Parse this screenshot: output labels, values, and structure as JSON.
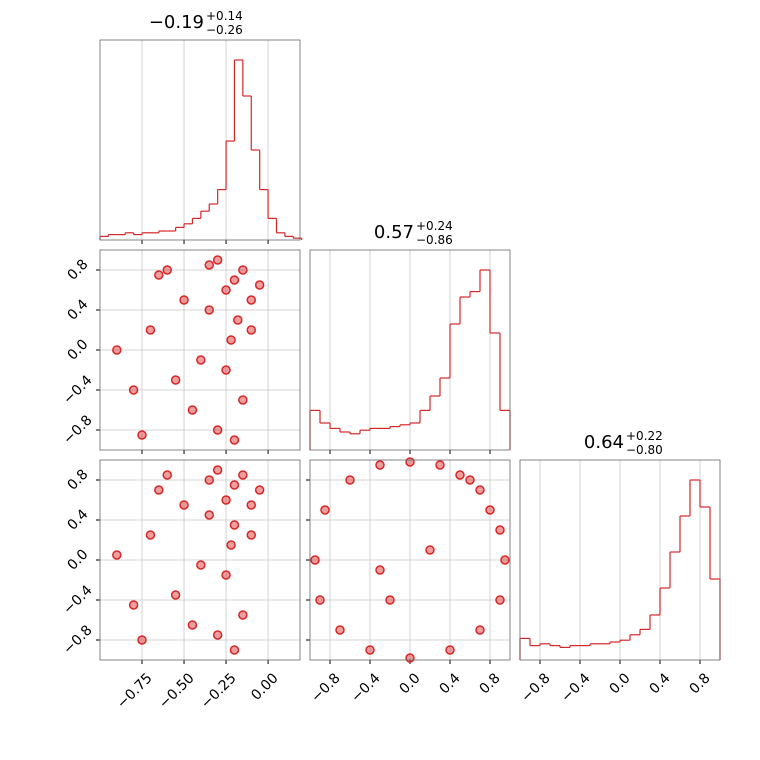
{
  "chart_data": [
    {
      "type": "histogram",
      "title": "−0.19",
      "title_plus": "+0.14",
      "title_minus": "−0.26",
      "color": "#d62728",
      "bins": [
        -1.0,
        -0.95,
        -0.9,
        -0.85,
        -0.8,
        -0.75,
        -0.7,
        -0.65,
        -0.6,
        -0.55,
        -0.5,
        -0.45,
        -0.4,
        -0.35,
        -0.3,
        -0.25,
        -0.2,
        -0.15,
        -0.1,
        -0.05,
        0.0,
        0.05,
        0.1,
        0.15,
        0.2
      ],
      "values": [
        2,
        3,
        3,
        4,
        3,
        4,
        4,
        5,
        5,
        7,
        9,
        12,
        16,
        20,
        28,
        55,
        100,
        80,
        50,
        28,
        12,
        4,
        2,
        1
      ],
      "xlim": [
        -1.0,
        0.19
      ],
      "xticks": [
        -0.75,
        -0.5,
        -0.25,
        0.0
      ],
      "grid": true,
      "show_xticklabels": false
    },
    {
      "type": "scatter",
      "color": "#d62728",
      "x": [
        -0.2,
        -0.15,
        -0.25,
        -0.1,
        -0.3,
        -0.18,
        -0.22,
        -0.05,
        -0.35,
        -0.4,
        -0.5,
        -0.6,
        -0.7,
        -0.8,
        -0.9,
        -0.45,
        -0.3,
        -0.2,
        -0.15,
        -0.55,
        -0.65,
        -0.25,
        -0.1,
        -0.35,
        -0.75
      ],
      "y": [
        0.7,
        0.8,
        0.6,
        0.5,
        0.9,
        0.3,
        0.1,
        0.65,
        0.4,
        -0.1,
        0.5,
        0.8,
        0.2,
        -0.4,
        0.0,
        -0.6,
        -0.8,
        -0.9,
        -0.5,
        -0.3,
        0.75,
        -0.2,
        0.2,
        0.85,
        -0.85
      ],
      "xlim": [
        -1.0,
        0.19
      ],
      "xticks": [
        -0.75,
        -0.5,
        -0.25,
        0.0
      ],
      "ylim": [
        -1,
        1
      ],
      "yticks": [
        {
          "value": -0.8,
          "label": "−0.8"
        },
        {
          "value": -0.4,
          "label": "−0.4"
        },
        {
          "value": 0.0,
          "label": "0.0"
        },
        0.4,
        0.8
      ],
      "grid": true,
      "show_xticklabels": false,
      "show_yticklabels": true
    },
    {
      "type": "histogram",
      "title": "0.57",
      "title_plus": "+0.24",
      "title_minus": "−0.86",
      "color": "#d62728",
      "bins": [
        -1.0,
        -0.9,
        -0.8,
        -0.7,
        -0.6,
        -0.5,
        -0.4,
        -0.3,
        -0.2,
        -0.1,
        0.0,
        0.1,
        0.2,
        0.3,
        0.4,
        0.5,
        0.6,
        0.7,
        0.8,
        0.9,
        1.0
      ],
      "values": [
        22,
        15,
        12,
        10,
        9,
        11,
        12,
        12,
        13,
        14,
        15,
        22,
        30,
        40,
        70,
        85,
        88,
        100,
        65,
        22
      ],
      "xlim": [
        -1,
        1
      ],
      "xticks": [
        -0.8,
        -0.4,
        0.0,
        0.4,
        0.8
      ],
      "grid": true,
      "show_xticklabels": false
    },
    {
      "type": "scatter",
      "color": "#d62728",
      "x": [
        -0.2,
        -0.15,
        -0.25,
        -0.1,
        -0.3,
        -0.2,
        -0.22,
        -0.05,
        -0.35,
        -0.4,
        -0.5,
        -0.6,
        -0.7,
        -0.8,
        -0.9,
        -0.45,
        -0.3,
        -0.2,
        -0.15,
        -0.55,
        -0.65,
        -0.25,
        -0.1,
        -0.35,
        -0.75
      ],
      "y": [
        0.75,
        0.85,
        0.6,
        0.55,
        0.9,
        0.35,
        0.15,
        0.7,
        0.45,
        -0.05,
        0.55,
        0.85,
        0.25,
        -0.45,
        0.05,
        -0.65,
        -0.75,
        -0.9,
        -0.55,
        -0.35,
        0.7,
        -0.15,
        0.25,
        0.8,
        -0.8
      ],
      "xlim": [
        -1.0,
        0.19
      ],
      "xticks": [
        {
          "value": -0.75,
          "label": "−0.75"
        },
        {
          "value": -0.5,
          "label": "−0.50"
        },
        {
          "value": -0.25,
          "label": "−0.25"
        },
        {
          "value": 0.0,
          "label": "0.00"
        }
      ],
      "ylim": [
        -1,
        1
      ],
      "yticks": [
        {
          "value": -0.8,
          "label": "−0.8"
        },
        {
          "value": -0.4,
          "label": "−0.4"
        },
        {
          "value": 0.0,
          "label": "0.0"
        },
        0.4,
        0.8
      ],
      "grid": true,
      "show_xticklabels": true,
      "show_yticklabels": true
    },
    {
      "type": "scatter",
      "color": "#d62728",
      "x": [
        0.7,
        0.8,
        0.6,
        0.9,
        0.5,
        0.95,
        0.3,
        0.0,
        -0.3,
        -0.6,
        -0.85,
        -0.95,
        -0.9,
        -0.7,
        -0.4,
        0.0,
        0.4,
        0.7,
        0.9,
        0.2,
        -0.2,
        -0.3
      ],
      "y": [
        0.7,
        0.5,
        0.8,
        0.3,
        0.85,
        0.0,
        0.95,
        0.98,
        0.95,
        0.8,
        0.5,
        0.0,
        -0.4,
        -0.7,
        -0.9,
        -0.98,
        -0.9,
        -0.7,
        -0.4,
        0.1,
        -0.4,
        -0.1
      ],
      "xlim": [
        -1,
        1
      ],
      "xticks": [
        {
          "value": -0.8,
          "label": "−0.8"
        },
        {
          "value": -0.4,
          "label": "−0.4"
        },
        {
          "value": 0.0,
          "label": "0.0"
        },
        0.4,
        0.8
      ],
      "ylim": [
        -1,
        1
      ],
      "yticks": [
        -0.8,
        -0.4,
        0.0,
        0.4,
        0.8
      ],
      "grid": true,
      "show_xticklabels": true,
      "show_yticklabels": false
    },
    {
      "type": "histogram",
      "title": "0.64",
      "title_plus": "+0.22",
      "title_minus": "−0.80",
      "color": "#d62728",
      "bins": [
        -1.0,
        -0.9,
        -0.8,
        -0.7,
        -0.6,
        -0.5,
        -0.4,
        -0.3,
        -0.2,
        -0.1,
        0.0,
        0.1,
        0.2,
        0.3,
        0.4,
        0.5,
        0.6,
        0.7,
        0.8,
        0.9,
        1.0
      ],
      "values": [
        12,
        8,
        9,
        8,
        7,
        8,
        8,
        9,
        9,
        10,
        11,
        14,
        17,
        25,
        40,
        60,
        80,
        100,
        85,
        45
      ],
      "xlim": [
        -1,
        1
      ],
      "xticks": [
        {
          "value": -0.8,
          "label": "−0.8"
        },
        {
          "value": -0.4,
          "label": "−0.4"
        },
        {
          "value": 0.0,
          "label": "0.0"
        },
        0.4,
        0.8
      ],
      "grid": true,
      "show_xticklabels": true
    }
  ]
}
